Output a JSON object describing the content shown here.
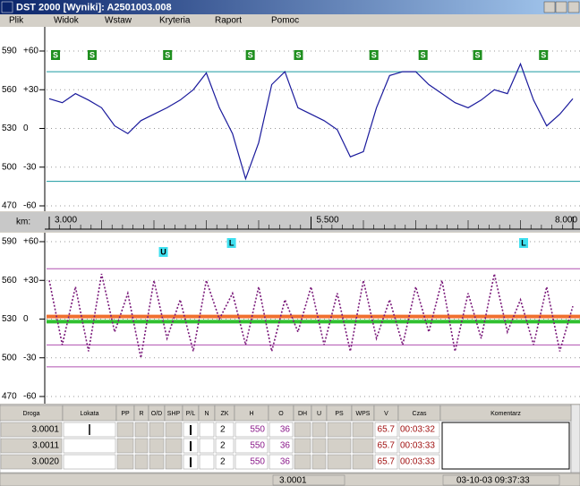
{
  "window": {
    "title": "DST 2000 [Wyniki]:  A2501003.008"
  },
  "menu": [
    "Plik",
    "Widok",
    "Wstaw",
    "Kryteria",
    "Raport",
    "Pomoc"
  ],
  "km_axis": {
    "label": "km:",
    "xlim": [
      3,
      8
    ],
    "xticks": [
      {
        "value": 3,
        "label": "3.000"
      },
      {
        "value": 5.5,
        "label": "5.500"
      },
      {
        "value": 8,
        "label": "8.000"
      }
    ]
  },
  "chart_data": [
    {
      "type": "line",
      "xlim": [
        3,
        8
      ],
      "ylim": [
        470,
        590
      ],
      "yticks": [
        590,
        560,
        530,
        500,
        470
      ],
      "y2ticks": [
        {
          "value": 60,
          "label": "+60"
        },
        {
          "value": 30,
          "label": "+30"
        },
        0,
        -30,
        -60
      ],
      "grid": true,
      "limit_lines": [
        574,
        489
      ],
      "markers": {
        "labels": [
          "S",
          "S",
          "S",
          "S",
          "S",
          "S",
          "S",
          "S",
          "S"
        ],
        "x": [
          3.06,
          3.41,
          4.13,
          4.92,
          5.38,
          6.1,
          6.57,
          7.09,
          7.72
        ]
      },
      "x": [
        3,
        3.125,
        3.25,
        3.375,
        3.5,
        3.625,
        3.75,
        3.875,
        4,
        4.125,
        4.25,
        4.375,
        4.5,
        4.625,
        4.75,
        4.875,
        5,
        5.125,
        5.25,
        5.375,
        5.5,
        5.625,
        5.75,
        5.875,
        6,
        6.125,
        6.25,
        6.375,
        6.5,
        6.625,
        6.75,
        6.875,
        7,
        7.125,
        7.25,
        7.375,
        7.5,
        7.625,
        7.75,
        7.875,
        8
      ],
      "series": [
        {
          "color": "#1a1a9c",
          "values": [
            553,
            550,
            557,
            552,
            546,
            532,
            526,
            536,
            541,
            546,
            552,
            560,
            573,
            546,
            526,
            491,
            519,
            564,
            574,
            546,
            541,
            536,
            529,
            508,
            512,
            546,
            571,
            574,
            574,
            564,
            557,
            550,
            546,
            552,
            560,
            557,
            580,
            552,
            532,
            541,
            553
          ]
        }
      ]
    },
    {
      "type": "line",
      "xlim": [
        3,
        8
      ],
      "ylim": [
        470,
        590
      ],
      "yticks": [
        590,
        560,
        530,
        500,
        470
      ],
      "y2ticks": [
        {
          "value": 60,
          "label": "+60"
        },
        {
          "value": 30,
          "label": "+30"
        },
        0,
        -30,
        -60
      ],
      "grid": true,
      "guide_lines": [
        569,
        510,
        493
      ],
      "bands": [
        {
          "color": "#f07030",
          "value": 532
        },
        {
          "color": "#30c030",
          "value": 528
        }
      ],
      "markers": {
        "labels": [
          "U",
          "L",
          "L"
        ],
        "x": [
          4.09,
          4.74,
          7.53
        ]
      },
      "x": [
        3,
        3.125,
        3.25,
        3.375,
        3.5,
        3.625,
        3.75,
        3.875,
        4,
        4.125,
        4.25,
        4.375,
        4.5,
        4.625,
        4.75,
        4.875,
        5,
        5.125,
        5.25,
        5.375,
        5.5,
        5.625,
        5.75,
        5.875,
        6,
        6.125,
        6.25,
        6.375,
        6.5,
        6.625,
        6.75,
        6.875,
        7,
        7.125,
        7.25,
        7.375,
        7.5,
        7.625,
        7.75,
        7.875,
        8
      ],
      "series": [
        {
          "color": "#7a1a7a",
          "values": [
            560,
            510,
            555,
            505,
            565,
            520,
            550,
            500,
            560,
            515,
            545,
            505,
            560,
            530,
            550,
            510,
            555,
            505,
            545,
            520,
            555,
            510,
            550,
            505,
            560,
            515,
            545,
            510,
            555,
            520,
            560,
            505,
            550,
            515,
            565,
            520,
            545,
            510,
            555,
            505,
            540
          ]
        }
      ]
    }
  ],
  "table": {
    "headers": [
      "Droga",
      "Lokata",
      "PP",
      "R",
      "O/D",
      "SHP",
      "P/L",
      "N",
      "ZK",
      "H",
      "O",
      "DH",
      "U",
      "PS",
      "WPS",
      "V",
      "Czas",
      "Komentarz"
    ],
    "rows": [
      {
        "Droga": "3.0001",
        "ZK": "2",
        "H": "550",
        "O": "36",
        "V": "65.7",
        "Czas": "00:03:32"
      },
      {
        "Droga": "3.0011",
        "ZK": "2",
        "H": "550",
        "O": "36",
        "V": "65.7",
        "Czas": "00:03:33"
      },
      {
        "Droga": "3.0020",
        "ZK": "2",
        "H": "550",
        "O": "36",
        "V": "65.7",
        "Czas": "00:03:33"
      }
    ]
  },
  "status": {
    "position": "3.0001",
    "datetime": "03-10-03 09:37:33"
  }
}
